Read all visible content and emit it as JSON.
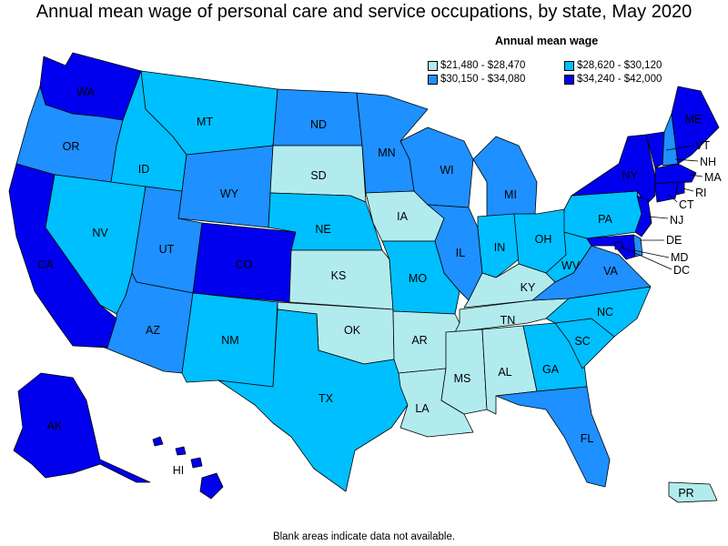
{
  "title": "Annual mean wage of personal care and service occupations, by state, May 2020",
  "legend": {
    "title": "Annual mean wage",
    "items": [
      {
        "label": "$21,480 - $28,470",
        "color": "#b2ebee"
      },
      {
        "label": "$28,620 - $30,120",
        "color": "#00bfff"
      },
      {
        "label": "$30,150 - $34,080",
        "color": "#1e90ff"
      },
      {
        "label": "$34,240 - $42,000",
        "color": "#0000ee"
      }
    ]
  },
  "footnote": "Blank areas indicate data not available.",
  "states": {
    "WA": {
      "label": "WA",
      "tier": 3
    },
    "OR": {
      "label": "OR",
      "tier": 2
    },
    "CA": {
      "label": "CA",
      "tier": 3
    },
    "NV": {
      "label": "NV",
      "tier": 1
    },
    "ID": {
      "label": "ID",
      "tier": 1
    },
    "MT": {
      "label": "MT",
      "tier": 1
    },
    "WY": {
      "label": "WY",
      "tier": 2
    },
    "UT": {
      "label": "UT",
      "tier": 2
    },
    "AZ": {
      "label": "AZ",
      "tier": 2
    },
    "CO": {
      "label": "CO",
      "tier": 3
    },
    "NM": {
      "label": "NM",
      "tier": 1
    },
    "ND": {
      "label": "ND",
      "tier": 2
    },
    "SD": {
      "label": "SD",
      "tier": 0
    },
    "NE": {
      "label": "NE",
      "tier": 1
    },
    "KS": {
      "label": "KS",
      "tier": 0
    },
    "OK": {
      "label": "OK",
      "tier": 0
    },
    "TX": {
      "label": "TX",
      "tier": 1
    },
    "MN": {
      "label": "MN",
      "tier": 2
    },
    "IA": {
      "label": "IA",
      "tier": 0
    },
    "MO": {
      "label": "MO",
      "tier": 1
    },
    "AR": {
      "label": "AR",
      "tier": 0
    },
    "LA": {
      "label": "LA",
      "tier": 0
    },
    "WI": {
      "label": "WI",
      "tier": 2
    },
    "IL": {
      "label": "IL",
      "tier": 2
    },
    "MI": {
      "label": "MI",
      "tier": 2
    },
    "IN": {
      "label": "IN",
      "tier": 1
    },
    "OH": {
      "label": "OH",
      "tier": 1
    },
    "KY": {
      "label": "KY",
      "tier": 0
    },
    "TN": {
      "label": "TN",
      "tier": 0
    },
    "MS": {
      "label": "MS",
      "tier": 0
    },
    "AL": {
      "label": "AL",
      "tier": 0
    },
    "GA": {
      "label": "GA",
      "tier": 1
    },
    "FL": {
      "label": "FL",
      "tier": 2
    },
    "SC": {
      "label": "SC",
      "tier": 1
    },
    "NC": {
      "label": "NC",
      "tier": 1
    },
    "VA": {
      "label": "VA",
      "tier": 2
    },
    "WV": {
      "label": "WV",
      "tier": 1
    },
    "PA": {
      "label": "PA",
      "tier": 1
    },
    "NY": {
      "label": "NY",
      "tier": 3
    },
    "VT": {
      "label": "VT",
      "tier": 3
    },
    "NH": {
      "label": "NH",
      "tier": 2
    },
    "ME": {
      "label": "ME",
      "tier": 3
    },
    "MA": {
      "label": "MA",
      "tier": 3
    },
    "RI": {
      "label": "RI",
      "tier": 3
    },
    "CT": {
      "label": "CT",
      "tier": 3
    },
    "NJ": {
      "label": "NJ",
      "tier": 3
    },
    "DE": {
      "label": "DE",
      "tier": 2
    },
    "MD": {
      "label": "MD",
      "tier": 3
    },
    "DC": {
      "label": "DC",
      "tier": 3
    },
    "AK": {
      "label": "AK",
      "tier": 3
    },
    "HI": {
      "label": "HI",
      "tier": 3
    },
    "PR": {
      "label": "PR",
      "tier": 0
    }
  }
}
